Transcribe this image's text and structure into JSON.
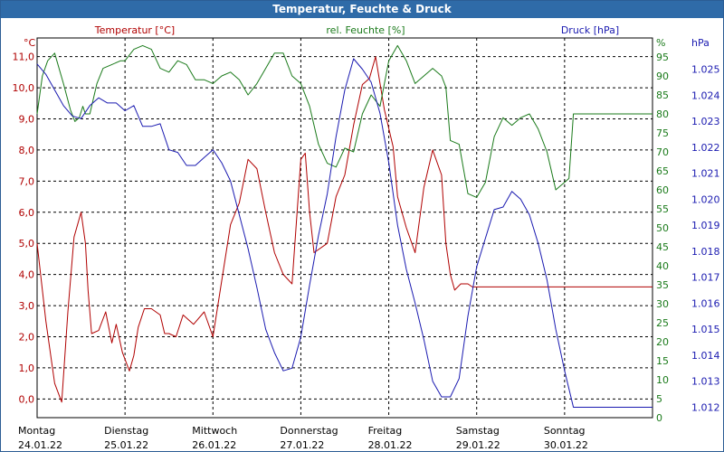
{
  "window": {
    "title": "Temperatur, Feuchte & Druck"
  },
  "colors": {
    "temperature": "#b00000",
    "humidity": "#1a7a1a",
    "pressure": "#1a1ab0",
    "grid": "#000000",
    "title_bar": "#2f6ba8"
  },
  "chart_data": {
    "type": "line",
    "title": "Temperatur, Feuchte & Druck",
    "axes": {
      "temperature": {
        "label": "Temperatur [°C]",
        "unit": "°C",
        "ylim": [
          -0.6,
          11.6
        ],
        "ticks": [
          "0,0",
          "1,0",
          "2,0",
          "3,0",
          "4,0",
          "5,0",
          "6,0",
          "7,0",
          "8,0",
          "9,0",
          "10,0",
          "11,0"
        ]
      },
      "humidity": {
        "label": "rel. Feuchte [%]",
        "unit": "%",
        "ylim": [
          0,
          100
        ],
        "ticks": [
          "0",
          "5",
          "10",
          "15",
          "20",
          "25",
          "30",
          "35",
          "40",
          "45",
          "50",
          "55",
          "60",
          "65",
          "70",
          "75",
          "80",
          "85",
          "90",
          "95"
        ]
      },
      "pressure": {
        "label": "Druck [hPa]",
        "unit": "hPa",
        "ylim": [
          1.0116,
          1.0262
        ],
        "ticks": [
          "1.012",
          "1.013",
          "1.014",
          "1.015",
          "1.016",
          "1.017",
          "1.018",
          "1.019",
          "1.020",
          "1.021",
          "1.022",
          "1.023",
          "1.024",
          "1.025"
        ]
      }
    },
    "x_range": [
      0,
      7
    ],
    "days": [
      {
        "name": "Montag",
        "date": "24.01.22"
      },
      {
        "name": "Dienstag",
        "date": "25.01.22"
      },
      {
        "name": "Mittwoch",
        "date": "26.01.22"
      },
      {
        "name": "Donnerstag",
        "date": "27.01.22"
      },
      {
        "name": "Freitag",
        "date": "28.01.22"
      },
      {
        "name": "Samstag",
        "date": "29.01.22"
      },
      {
        "name": "Sonntag",
        "date": "30.01.22"
      }
    ],
    "series": [
      {
        "name": "Temperatur",
        "axis": "temperature",
        "x": [
          0,
          0.1,
          0.2,
          0.28,
          0.35,
          0.42,
          0.5,
          0.55,
          0.58,
          0.62,
          0.7,
          0.78,
          0.85,
          0.9,
          0.97,
          1.05,
          1.1,
          1.15,
          1.22,
          1.3,
          1.4,
          1.45,
          1.5,
          1.58,
          1.66,
          1.78,
          1.9,
          2.0,
          2.1,
          2.2,
          2.3,
          2.4,
          2.5,
          2.6,
          2.7,
          2.8,
          2.9,
          3.0,
          3.05,
          3.1,
          3.15,
          3.3,
          3.4,
          3.5,
          3.6,
          3.7,
          3.78,
          3.85,
          3.95,
          4.05,
          4.1,
          4.2,
          4.3,
          4.4,
          4.5,
          4.6,
          4.65,
          4.7,
          4.75,
          4.82,
          4.9,
          4.95,
          5.05,
          5.1,
          5.2,
          5.3,
          5.4,
          5.5,
          5.6,
          5.68,
          5.75,
          5.85,
          5.9,
          5.95,
          6.0,
          6.05,
          6.15,
          6.2,
          6.25,
          6.3,
          6.4,
          6.5,
          6.58,
          6.65,
          6.7,
          6.8,
          6.9,
          6.95,
          7.0
        ],
        "values": [
          5.0,
          2.5,
          0.5,
          -0.1,
          2.8,
          5.2,
          6.0,
          5.0,
          3.5,
          2.1,
          2.2,
          2.8,
          1.8,
          2.4,
          1.5,
          0.9,
          1.4,
          2.3,
          2.9,
          2.9,
          2.7,
          2.1,
          2.1,
          2.0,
          2.7,
          2.4,
          2.8,
          2.0,
          3.8,
          5.6,
          6.3,
          7.7,
          7.4,
          6.0,
          4.7,
          4.0,
          3.7,
          7.7,
          7.9,
          6.0,
          4.7,
          5.0,
          6.5,
          7.2,
          8.8,
          10.1,
          10.3,
          11.0,
          9.3,
          8.1,
          6.5,
          5.5,
          4.7,
          6.8,
          8.0,
          7.2,
          5.0,
          4.0,
          3.5,
          3.7,
          3.7,
          3.6,
          3.6,
          3.6,
          3.6,
          3.6,
          3.6,
          3.6,
          3.6,
          3.6,
          3.6,
          3.6,
          3.6,
          3.6,
          3.6,
          3.6,
          3.6,
          3.6,
          3.6,
          3.6,
          3.6,
          3.6,
          3.6,
          3.6,
          3.6,
          3.6,
          3.6,
          3.6,
          3.6
        ]
      },
      {
        "name": "rel. Feuchte",
        "axis": "humidity",
        "x": [
          0,
          0.06,
          0.12,
          0.2,
          0.3,
          0.38,
          0.43,
          0.48,
          0.52,
          0.55,
          0.6,
          0.68,
          0.75,
          0.85,
          0.95,
          1.0,
          1.1,
          1.2,
          1.3,
          1.4,
          1.5,
          1.6,
          1.7,
          1.8,
          1.9,
          2.0,
          2.1,
          2.2,
          2.3,
          2.4,
          2.5,
          2.6,
          2.7,
          2.8,
          2.9,
          3.0,
          3.1,
          3.2,
          3.3,
          3.4,
          3.5,
          3.6,
          3.7,
          3.8,
          3.9,
          4.0,
          4.1,
          4.2,
          4.3,
          4.4,
          4.5,
          4.6,
          4.65,
          4.7,
          4.8,
          4.9,
          5.0,
          5.1,
          5.2,
          5.3,
          5.4,
          5.5,
          5.6,
          5.7,
          5.8,
          5.9,
          6.0,
          6.05,
          6.1,
          6.15,
          6.2,
          6.3,
          6.4,
          6.5,
          6.6,
          6.7,
          6.8,
          6.88,
          6.95,
          7.0
        ],
        "values": [
          80,
          90,
          94,
          96,
          88,
          81,
          78,
          79,
          82,
          80,
          80,
          88,
          92,
          93,
          94,
          94,
          97,
          98,
          97,
          92,
          91,
          94,
          93,
          89,
          89,
          88,
          90,
          91,
          89,
          85,
          88,
          92,
          96,
          96,
          90,
          88,
          82,
          72,
          67,
          66,
          71,
          70,
          80,
          85,
          82,
          94,
          98,
          94,
          88,
          90,
          92,
          90,
          87,
          73,
          72,
          59,
          58,
          62,
          74,
          79,
          77,
          79,
          80,
          76,
          70,
          60,
          62,
          63,
          80,
          80,
          80,
          80,
          80,
          80,
          80,
          80,
          80,
          80,
          80,
          80
        ]
      },
      {
        "name": "Druck",
        "axis": "pressure",
        "x": [
          0,
          0.1,
          0.2,
          0.3,
          0.4,
          0.5,
          0.6,
          0.7,
          0.8,
          0.9,
          1.0,
          1.1,
          1.2,
          1.3,
          1.4,
          1.5,
          1.6,
          1.7,
          1.8,
          1.9,
          2.0,
          2.1,
          2.2,
          2.3,
          2.4,
          2.5,
          2.6,
          2.7,
          2.8,
          2.9,
          3.0,
          3.1,
          3.2,
          3.3,
          3.4,
          3.5,
          3.6,
          3.7,
          3.8,
          3.9,
          4.0,
          4.1,
          4.2,
          4.3,
          4.4,
          4.5,
          4.6,
          4.7,
          4.8,
          4.9,
          5.0,
          5.1,
          5.2,
          5.3,
          5.4,
          5.5,
          5.6,
          5.7,
          5.8,
          5.9,
          6.0,
          6.1,
          6.2,
          6.3,
          6.4,
          6.5,
          6.6,
          6.7,
          6.8,
          6.9,
          6.95,
          7.0
        ],
        "values": [
          1.0252,
          1.0248,
          1.0242,
          1.0236,
          1.0232,
          1.0231,
          1.0236,
          1.0239,
          1.0237,
          1.0237,
          1.0234,
          1.0236,
          1.0228,
          1.0228,
          1.0229,
          1.0219,
          1.0218,
          1.0213,
          1.0213,
          1.0216,
          1.0219,
          1.0214,
          1.0207,
          1.0194,
          1.0181,
          1.0166,
          1.015,
          1.0141,
          1.0134,
          1.0135,
          1.0147,
          1.0167,
          1.0186,
          1.0202,
          1.0224,
          1.0242,
          1.0254,
          1.025,
          1.0245,
          1.0233,
          1.0214,
          1.019,
          1.0173,
          1.016,
          1.0146,
          1.013,
          1.0124,
          1.0124,
          1.0131,
          1.0155,
          1.0174,
          1.0185,
          1.0196,
          1.0197,
          1.0203,
          1.02,
          1.0194,
          1.0183,
          1.0169,
          1.015,
          1.0134,
          1.012,
          1.012,
          1.012,
          1.012,
          1.012,
          1.012,
          1.012,
          1.012,
          1.012,
          1.012,
          1.012
        ]
      }
    ]
  }
}
